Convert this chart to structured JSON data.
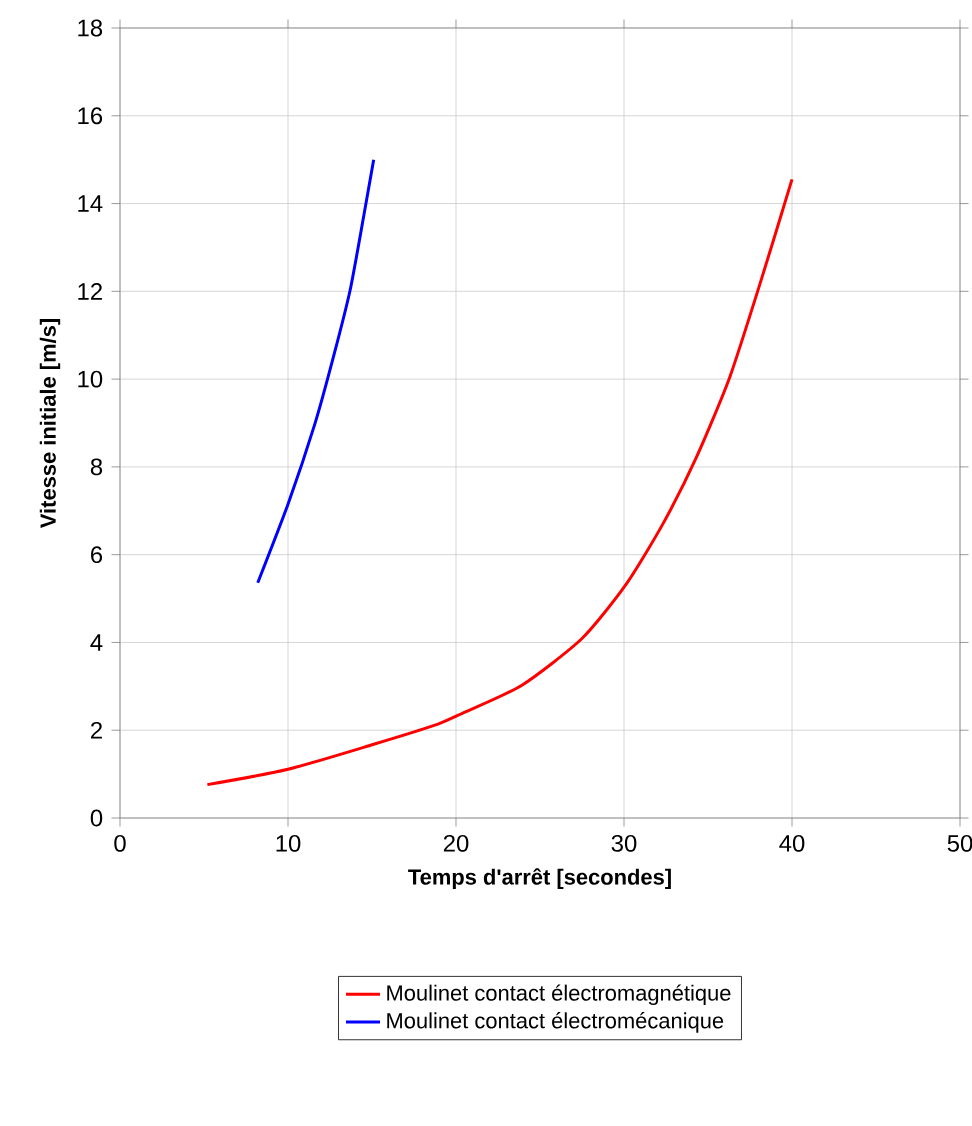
{
  "chart_data": {
    "type": "line",
    "xlabel": "Temps d'arrêt [secondes]",
    "ylabel": "Vitesse initiale [m/s]",
    "xlim": [
      0,
      50
    ],
    "xticks": [
      0,
      10,
      20,
      30,
      40,
      50
    ],
    "ylim": [
      0,
      18
    ],
    "yticks": [
      0,
      2,
      4,
      6,
      8,
      10,
      12,
      14,
      16,
      18
    ],
    "grid": true,
    "legend": "bottom",
    "marker": "none",
    "line_style": "solid",
    "series": [
      {
        "name": "Moulinet contact électromagnétique",
        "color": "#ff0000",
        "x": [
          5.2,
          10,
          15.1,
          18.7,
          20.1,
          23.9,
          27.5,
          30.1,
          32.3,
          34.3,
          36.3,
          38.2,
          40
        ],
        "values": [
          0.76,
          1.11,
          1.68,
          2.11,
          2.34,
          3.02,
          4.09,
          5.31,
          6.69,
          8.21,
          10.05,
          12.3,
          14.55
        ]
      },
      {
        "name": "Moulinet contact électromécanique",
        "color": "#0000ff",
        "x": [
          8.2,
          10,
          11.6,
          12.7,
          13.7,
          14.5,
          15.1
        ],
        "values": [
          5.36,
          7.15,
          8.98,
          10.5,
          12.03,
          13.7,
          15.0
        ]
      }
    ]
  }
}
